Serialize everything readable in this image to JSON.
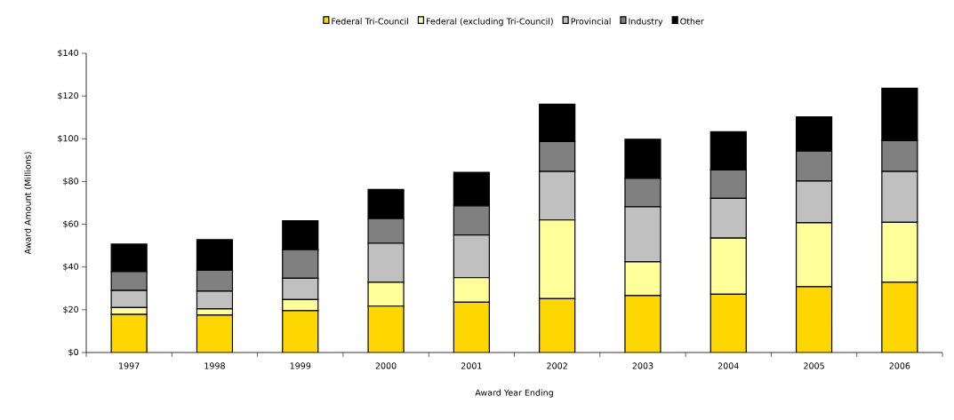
{
  "chart_data": {
    "type": "bar",
    "stacked": true,
    "xlabel": "Award Year Ending",
    "ylabel": "Award Amount  (Millions)",
    "categories": [
      "1997",
      "1998",
      "1999",
      "2000",
      "2001",
      "2002",
      "2003",
      "2004",
      "2005",
      "2006"
    ],
    "series": [
      {
        "name": "Federal Tri-Council",
        "color": "#ffd700",
        "values": [
          17.8,
          17.5,
          19.6,
          21.7,
          23.5,
          25.2,
          26.6,
          27.3,
          30.8,
          32.9
        ]
      },
      {
        "name": "Federal (excluding Tri-Council)",
        "color": "#ffff99",
        "values": [
          3.2,
          2.9,
          5.2,
          11.2,
          11.5,
          36.8,
          15.8,
          26.2,
          29.9,
          28.0
        ]
      },
      {
        "name": "Provincial",
        "color": "#c0c0c0",
        "values": [
          8.0,
          8.3,
          9.9,
          18.2,
          20.0,
          22.7,
          25.8,
          18.6,
          19.5,
          23.8
        ]
      },
      {
        "name": "Industry",
        "color": "#808080",
        "values": [
          8.8,
          9.8,
          13.4,
          11.6,
          13.6,
          14.0,
          13.3,
          13.3,
          14.0,
          14.4
        ]
      },
      {
        "name": "Other",
        "color": "#000000",
        "values": [
          12.9,
          14.3,
          13.5,
          13.6,
          15.7,
          17.5,
          18.3,
          17.9,
          16.1,
          24.5
        ]
      }
    ],
    "ylim": [
      0,
      140
    ],
    "yticks": [
      {
        "value": 0,
        "label": "$0"
      },
      {
        "value": 20,
        "label": "$20"
      },
      {
        "value": 40,
        "label": "$40"
      },
      {
        "value": 60,
        "label": "$60"
      },
      {
        "value": 80,
        "label": "$80"
      },
      {
        "value": 100,
        "label": "$100"
      },
      {
        "value": 120,
        "label": "$120"
      },
      {
        "value": 140,
        "label": "$140"
      }
    ],
    "legend": "top",
    "grid": false
  }
}
